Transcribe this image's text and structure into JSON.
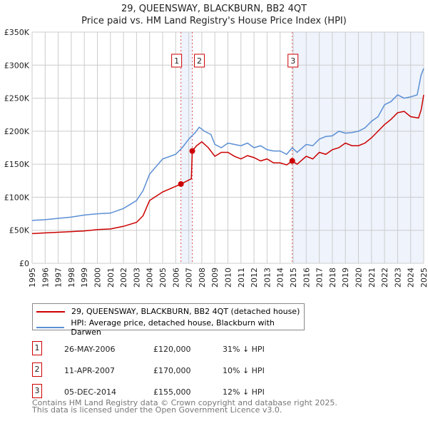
{
  "title": "29, QUEENSWAY, BLACKBURN, BB2 4QT",
  "subtitle": "Price paid vs. HM Land Registry's House Price Index (HPI)",
  "chart_data": {
    "type": "line",
    "ylim": [
      0,
      350000
    ],
    "xlim": [
      1995,
      2025
    ],
    "yticks": [
      {
        "v": 0,
        "label": "£0"
      },
      {
        "v": 50000,
        "label": "£50K"
      },
      {
        "v": 100000,
        "label": "£100K"
      },
      {
        "v": 150000,
        "label": "£150K"
      },
      {
        "v": 200000,
        "label": "£200K"
      },
      {
        "v": 250000,
        "label": "£250K"
      },
      {
        "v": 300000,
        "label": "£300K"
      },
      {
        "v": 350000,
        "label": "£350K"
      }
    ],
    "xticks": [
      "1995",
      "1996",
      "1997",
      "1998",
      "1999",
      "2000",
      "2001",
      "2002",
      "2003",
      "2004",
      "2005",
      "2006",
      "2007",
      "2008",
      "2009",
      "2010",
      "2011",
      "2012",
      "2013",
      "2014",
      "2015",
      "2016",
      "2017",
      "2018",
      "2019",
      "2020",
      "2021",
      "2022",
      "2023",
      "2024",
      "2025"
    ],
    "grid": true,
    "series": [
      {
        "name": "29, QUEENSWAY, BLACKBURN, BB2 4QT (detached house)",
        "color": "#cc0000",
        "x": [
          1995,
          1996,
          1997,
          1998,
          1999,
          2000,
          2001,
          2002,
          2003,
          2003.5,
          2004,
          2005,
          2006.4,
          2007.2,
          2007.27,
          2007.6,
          2008,
          2008.5,
          2009,
          2009.5,
          2010,
          2010.5,
          2011,
          2011.5,
          2012,
          2012.5,
          2013,
          2013.5,
          2014,
          2014.5,
          2014.93,
          2015.3,
          2016,
          2016.5,
          2017,
          2017.5,
          2018,
          2018.5,
          2019,
          2019.5,
          2020,
          2020.5,
          2021,
          2021.5,
          2022,
          2022.5,
          2023,
          2023.5,
          2024,
          2024.6,
          2024.8,
          2025
        ],
        "y": [
          45000,
          46000,
          47000,
          48000,
          49000,
          51000,
          52000,
          56000,
          62000,
          72000,
          95000,
          108000,
          120000,
          128000,
          170000,
          178000,
          184000,
          175000,
          162000,
          168000,
          168000,
          162000,
          158000,
          163000,
          160000,
          155000,
          158000,
          152000,
          152000,
          149000,
          155000,
          150000,
          162000,
          158000,
          168000,
          165000,
          172000,
          175000,
          182000,
          178000,
          178000,
          182000,
          190000,
          200000,
          210000,
          218000,
          228000,
          230000,
          222000,
          220000,
          232000,
          255000
        ]
      },
      {
        "name": "HPI: Average price, detached house, Blackburn with Darwen",
        "color": "#5b8fd4",
        "x": [
          1995,
          1996,
          1997,
          1998,
          1999,
          2000,
          2001,
          2002,
          2003,
          2003.5,
          2004,
          2005,
          2006,
          2006.5,
          2007,
          2007.5,
          2007.8,
          2008.2,
          2008.7,
          2009,
          2009.5,
          2010,
          2010.5,
          2011,
          2011.5,
          2012,
          2012.5,
          2013,
          2013.5,
          2014,
          2014.5,
          2014.93,
          2015.3,
          2016,
          2016.5,
          2017,
          2017.5,
          2018,
          2018.5,
          2019,
          2019.5,
          2020,
          2020.5,
          2021,
          2021.5,
          2022,
          2022.5,
          2023,
          2023.5,
          2024,
          2024.5,
          2024.8,
          2025
        ],
        "y": [
          65000,
          66000,
          68000,
          70000,
          73000,
          75000,
          76000,
          83000,
          95000,
          110000,
          135000,
          158000,
          165000,
          175000,
          188000,
          198000,
          206000,
          200000,
          195000,
          180000,
          175000,
          182000,
          180000,
          178000,
          182000,
          175000,
          178000,
          172000,
          170000,
          170000,
          165000,
          175000,
          168000,
          180000,
          178000,
          188000,
          192000,
          193000,
          200000,
          197000,
          198000,
          200000,
          205000,
          215000,
          222000,
          240000,
          245000,
          255000,
          250000,
          252000,
          255000,
          285000,
          295000
        ]
      }
    ],
    "sales": [
      {
        "n": "1",
        "x": 2006.4,
        "y": 120000,
        "date": "26-MAY-2006",
        "price": "£120,000",
        "hpi": "31% ↓ HPI"
      },
      {
        "n": "2",
        "x": 2007.27,
        "y": 170000,
        "date": "11-APR-2007",
        "price": "£170,000",
        "hpi": "10% ↓ HPI"
      },
      {
        "n": "3",
        "x": 2014.93,
        "y": 155000,
        "date": "05-DEC-2014",
        "price": "£155,000",
        "hpi": "12% ↓ HPI"
      }
    ]
  },
  "footer": [
    "Contains HM Land Registry data © Crown copyright and database right 2025.",
    "This data is licensed under the Open Government Licence v3.0."
  ]
}
